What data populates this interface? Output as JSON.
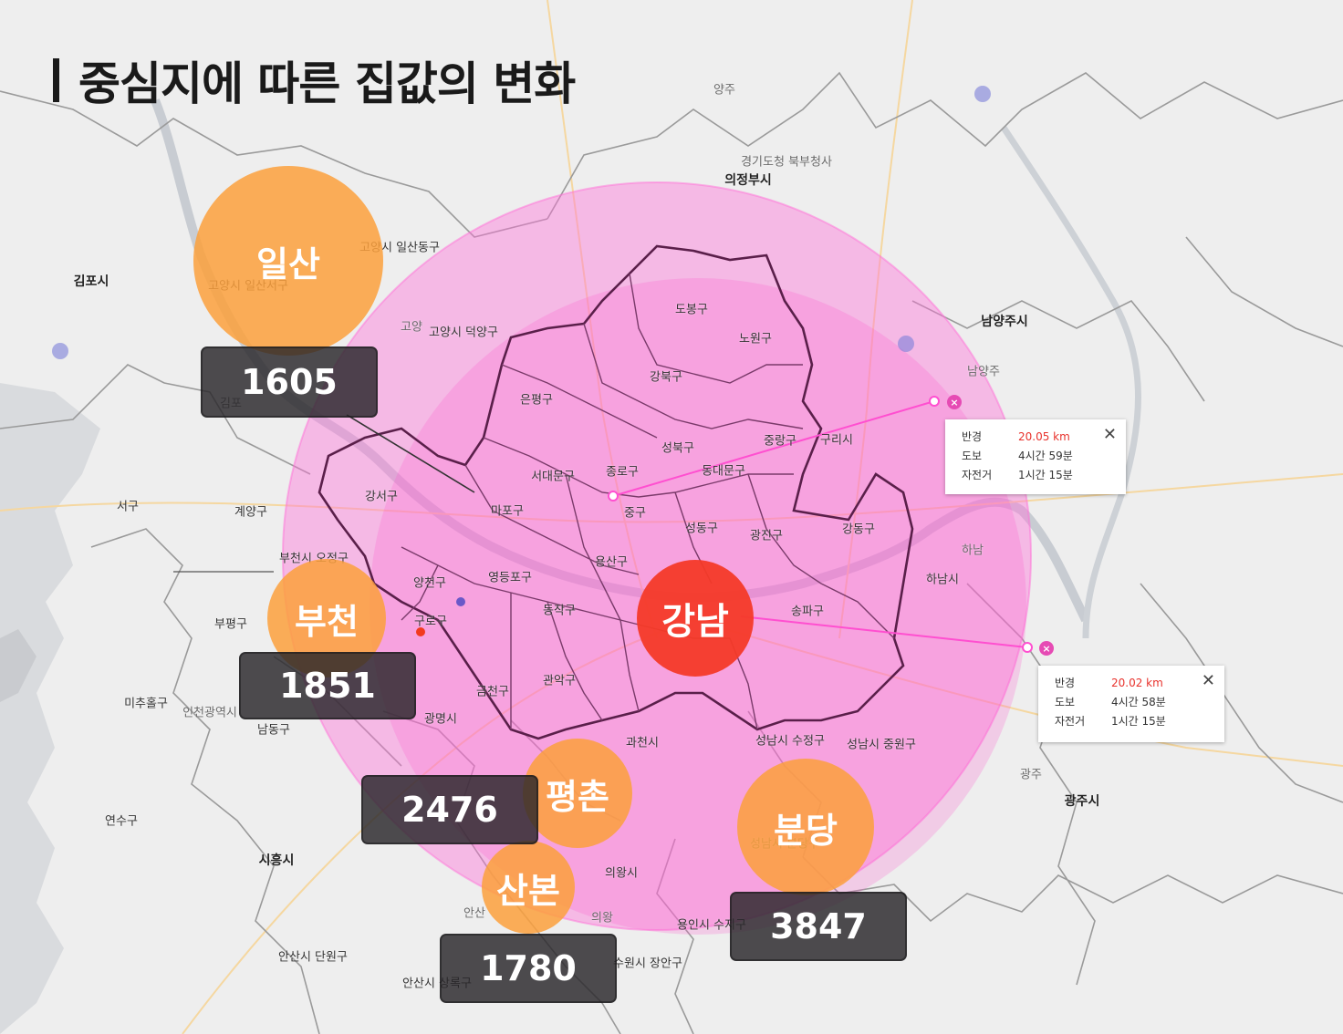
{
  "title": "중심지에 따른 집값의 변화",
  "center": {
    "name": "강남"
  },
  "hubs": [
    {
      "id": "ilsan",
      "name": "일산",
      "value": "1605"
    },
    {
      "id": "bucheon",
      "name": "부천",
      "value": "1851"
    },
    {
      "id": "pyeongchon",
      "name": "평촌",
      "value": "2476"
    },
    {
      "id": "sanbon",
      "name": "산본",
      "value": "1780"
    },
    {
      "id": "bundang",
      "name": "분당",
      "value": "3847"
    }
  ],
  "radius_popups": [
    {
      "id": "popup-1",
      "rows": [
        {
          "key": "반경",
          "value": "20.05 km"
        },
        {
          "key": "도보",
          "value": "4시간 59분"
        },
        {
          "key": "자전거",
          "value": "1시간 15분"
        }
      ]
    },
    {
      "id": "popup-2",
      "rows": [
        {
          "key": "반경",
          "value": "20.02 km"
        },
        {
          "key": "도보",
          "value": "4시간 58분"
        },
        {
          "key": "자전거",
          "value": "1시간 15분"
        }
      ]
    }
  ],
  "close_symbol": "✕",
  "marker_symbol": "×",
  "place_labels": [
    "도봉구",
    "노원구",
    "강북구",
    "은평구",
    "성북구",
    "중랑구",
    "구리시",
    "종로구",
    "동대문구",
    "서대문구",
    "강서구",
    "마포구",
    "중구",
    "성동구",
    "광진구",
    "강동구",
    "용산구",
    "양천구",
    "영등포구",
    "동작구",
    "송파구",
    "하남시",
    "구로구",
    "금천구",
    "관악구",
    "광명시",
    "과천시",
    "성남시 수정구",
    "성남시 중원구",
    "의왕시",
    "수원시 장안구",
    "용인시 수지구",
    "안산시 단원구",
    "안산시 상록구",
    "시흥시",
    "연수구",
    "남동구",
    "미추홀구",
    "부평구",
    "계양구",
    "서구",
    "김포시",
    "고양시 일산동구",
    "고양시 일산서구",
    "고양시 덕양구",
    "의정부시",
    "경기도청 북부청사",
    "양주",
    "남양주시",
    "남양주",
    "광주시",
    "광주",
    "하남",
    "김포",
    "고양",
    "부천시 오정구",
    "인천광역시",
    "성남시 분당구",
    "안산",
    "의왕"
  ],
  "colors": {
    "center_bubble": "#f43a28",
    "hub_bubble": "#fca03c",
    "radius_circle": "#ff5fd2",
    "value_box": "#28262a",
    "highlight_text": "#e8322c"
  }
}
